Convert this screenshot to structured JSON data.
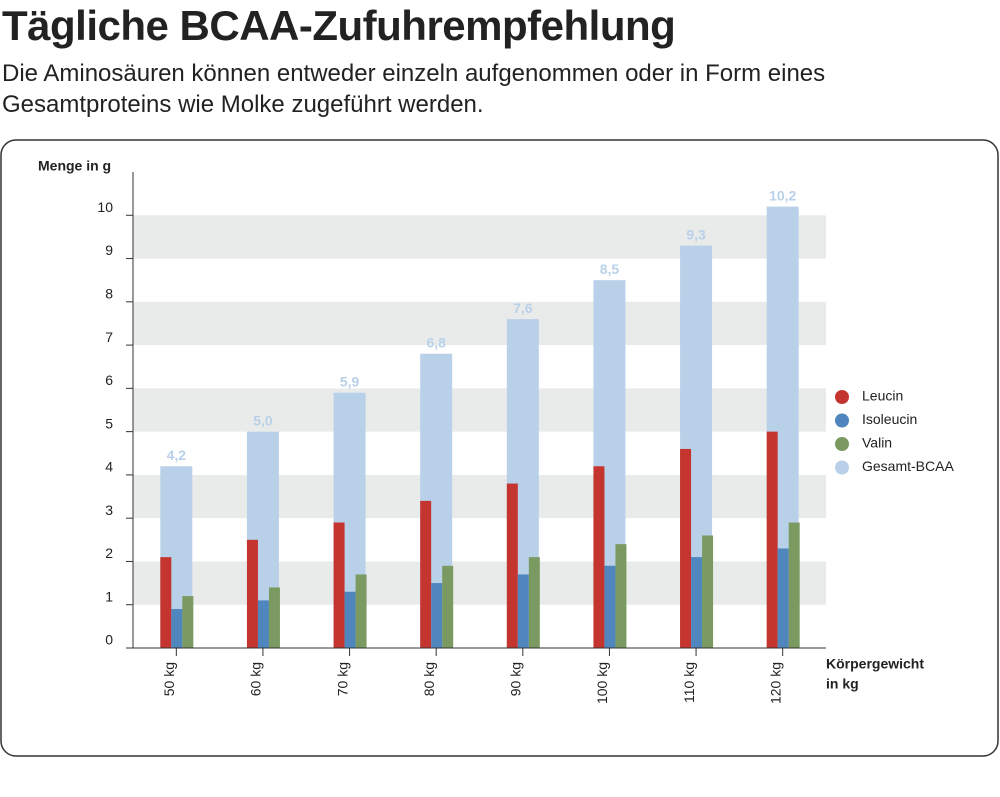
{
  "header": {
    "title": "Tägliche BCAA-Zufuhrempfehlung",
    "subtitle": "Die Aminosäuren können entweder einzeln aufgenommen oder in Form eines Gesamtproteins wie Molke zugeführt werden."
  },
  "chart_data": {
    "type": "bar",
    "y_label": "Menge in g",
    "x_label": [
      "Körpergewicht",
      "in kg"
    ],
    "categories": [
      "50 kg",
      "60 kg",
      "70 kg",
      "80 kg",
      "90 kg",
      "100 kg",
      "110 kg",
      "120 kg"
    ],
    "series": [
      {
        "name": "Leucin",
        "color": "#c4352f",
        "values": [
          2.1,
          2.5,
          2.9,
          3.4,
          3.8,
          4.2,
          4.6,
          5.0
        ]
      },
      {
        "name": "Isoleucin",
        "color": "#4f86bd",
        "values": [
          0.9,
          1.1,
          1.3,
          1.5,
          1.7,
          1.9,
          2.1,
          2.3
        ]
      },
      {
        "name": "Valin",
        "color": "#7a9a62",
        "values": [
          1.2,
          1.4,
          1.7,
          1.9,
          2.1,
          2.4,
          2.6,
          2.9
        ]
      },
      {
        "name": "Gesamt-BCAA",
        "color": "#b9d1e8",
        "values": [
          4.2,
          5.0,
          5.9,
          6.8,
          7.6,
          8.5,
          9.3,
          10.2
        ],
        "value_labels": [
          "4,2",
          "5,0",
          "5,9",
          "6,8",
          "7,6",
          "8,5",
          "9,3",
          "10,2"
        ]
      }
    ],
    "ylim": [
      0,
      11
    ],
    "yticks": [
      0,
      1,
      2,
      3,
      4,
      5,
      6,
      7,
      8,
      9,
      10
    ],
    "grid": "bands",
    "legend": "right"
  }
}
